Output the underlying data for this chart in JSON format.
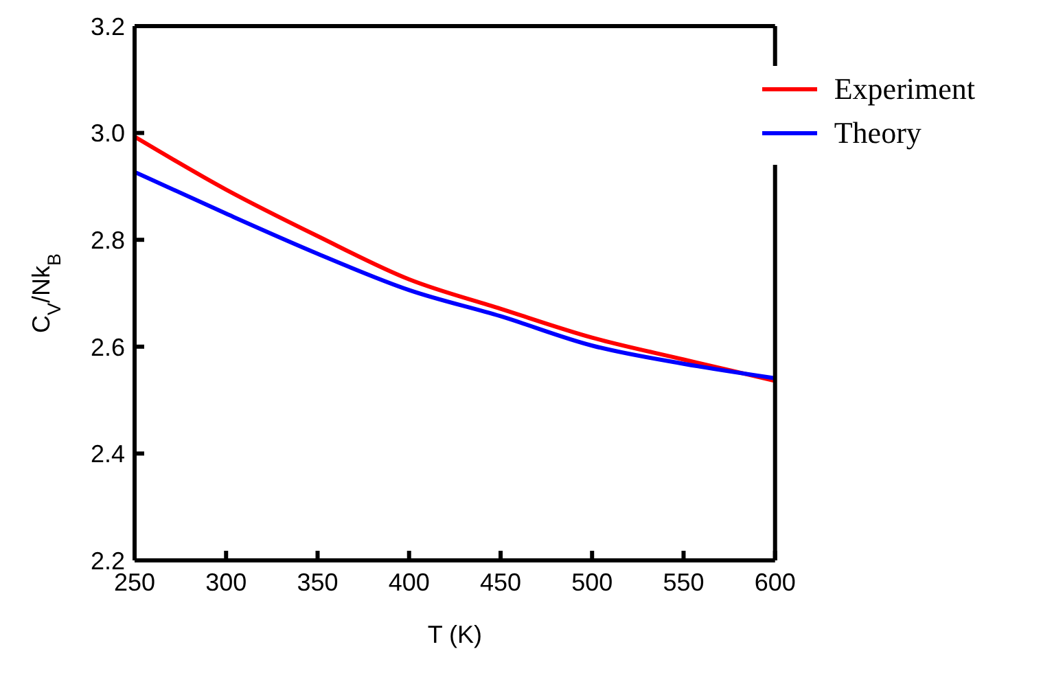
{
  "chart_data": {
    "type": "line",
    "xlabel": "T (K)",
    "ylabel": "C$_{V}$/Nk$_{B}$",
    "x": [
      250,
      300,
      350,
      400,
      450,
      500,
      550,
      600
    ],
    "series": [
      {
        "name": "Experiment",
        "color": "#ff0000",
        "values": [
          2.993,
          2.894,
          2.807,
          2.726,
          2.671,
          2.617,
          2.576,
          2.536
        ]
      },
      {
        "name": "Theory",
        "color": "#0000ff",
        "values": [
          2.927,
          2.849,
          2.774,
          2.706,
          2.657,
          2.602,
          2.568,
          2.541
        ]
      }
    ],
    "xlim": [
      250,
      600
    ],
    "xticks": [
      250,
      300,
      350,
      400,
      450,
      500,
      550,
      600
    ],
    "ylim": [
      2.2,
      3.2
    ],
    "yticks": [
      {
        "value": 2.2,
        "label": "2.2"
      },
      {
        "value": 2.4,
        "label": "2.4"
      },
      {
        "value": 2.6,
        "label": "2.6"
      },
      {
        "value": 2.8,
        "label": "2.8"
      },
      {
        "value": 3.0,
        "label": "3.0"
      },
      {
        "value": 3.2,
        "label": "3.2"
      }
    ],
    "legend": "top right",
    "grid": false,
    "marker": "none",
    "line_style": "solid"
  }
}
